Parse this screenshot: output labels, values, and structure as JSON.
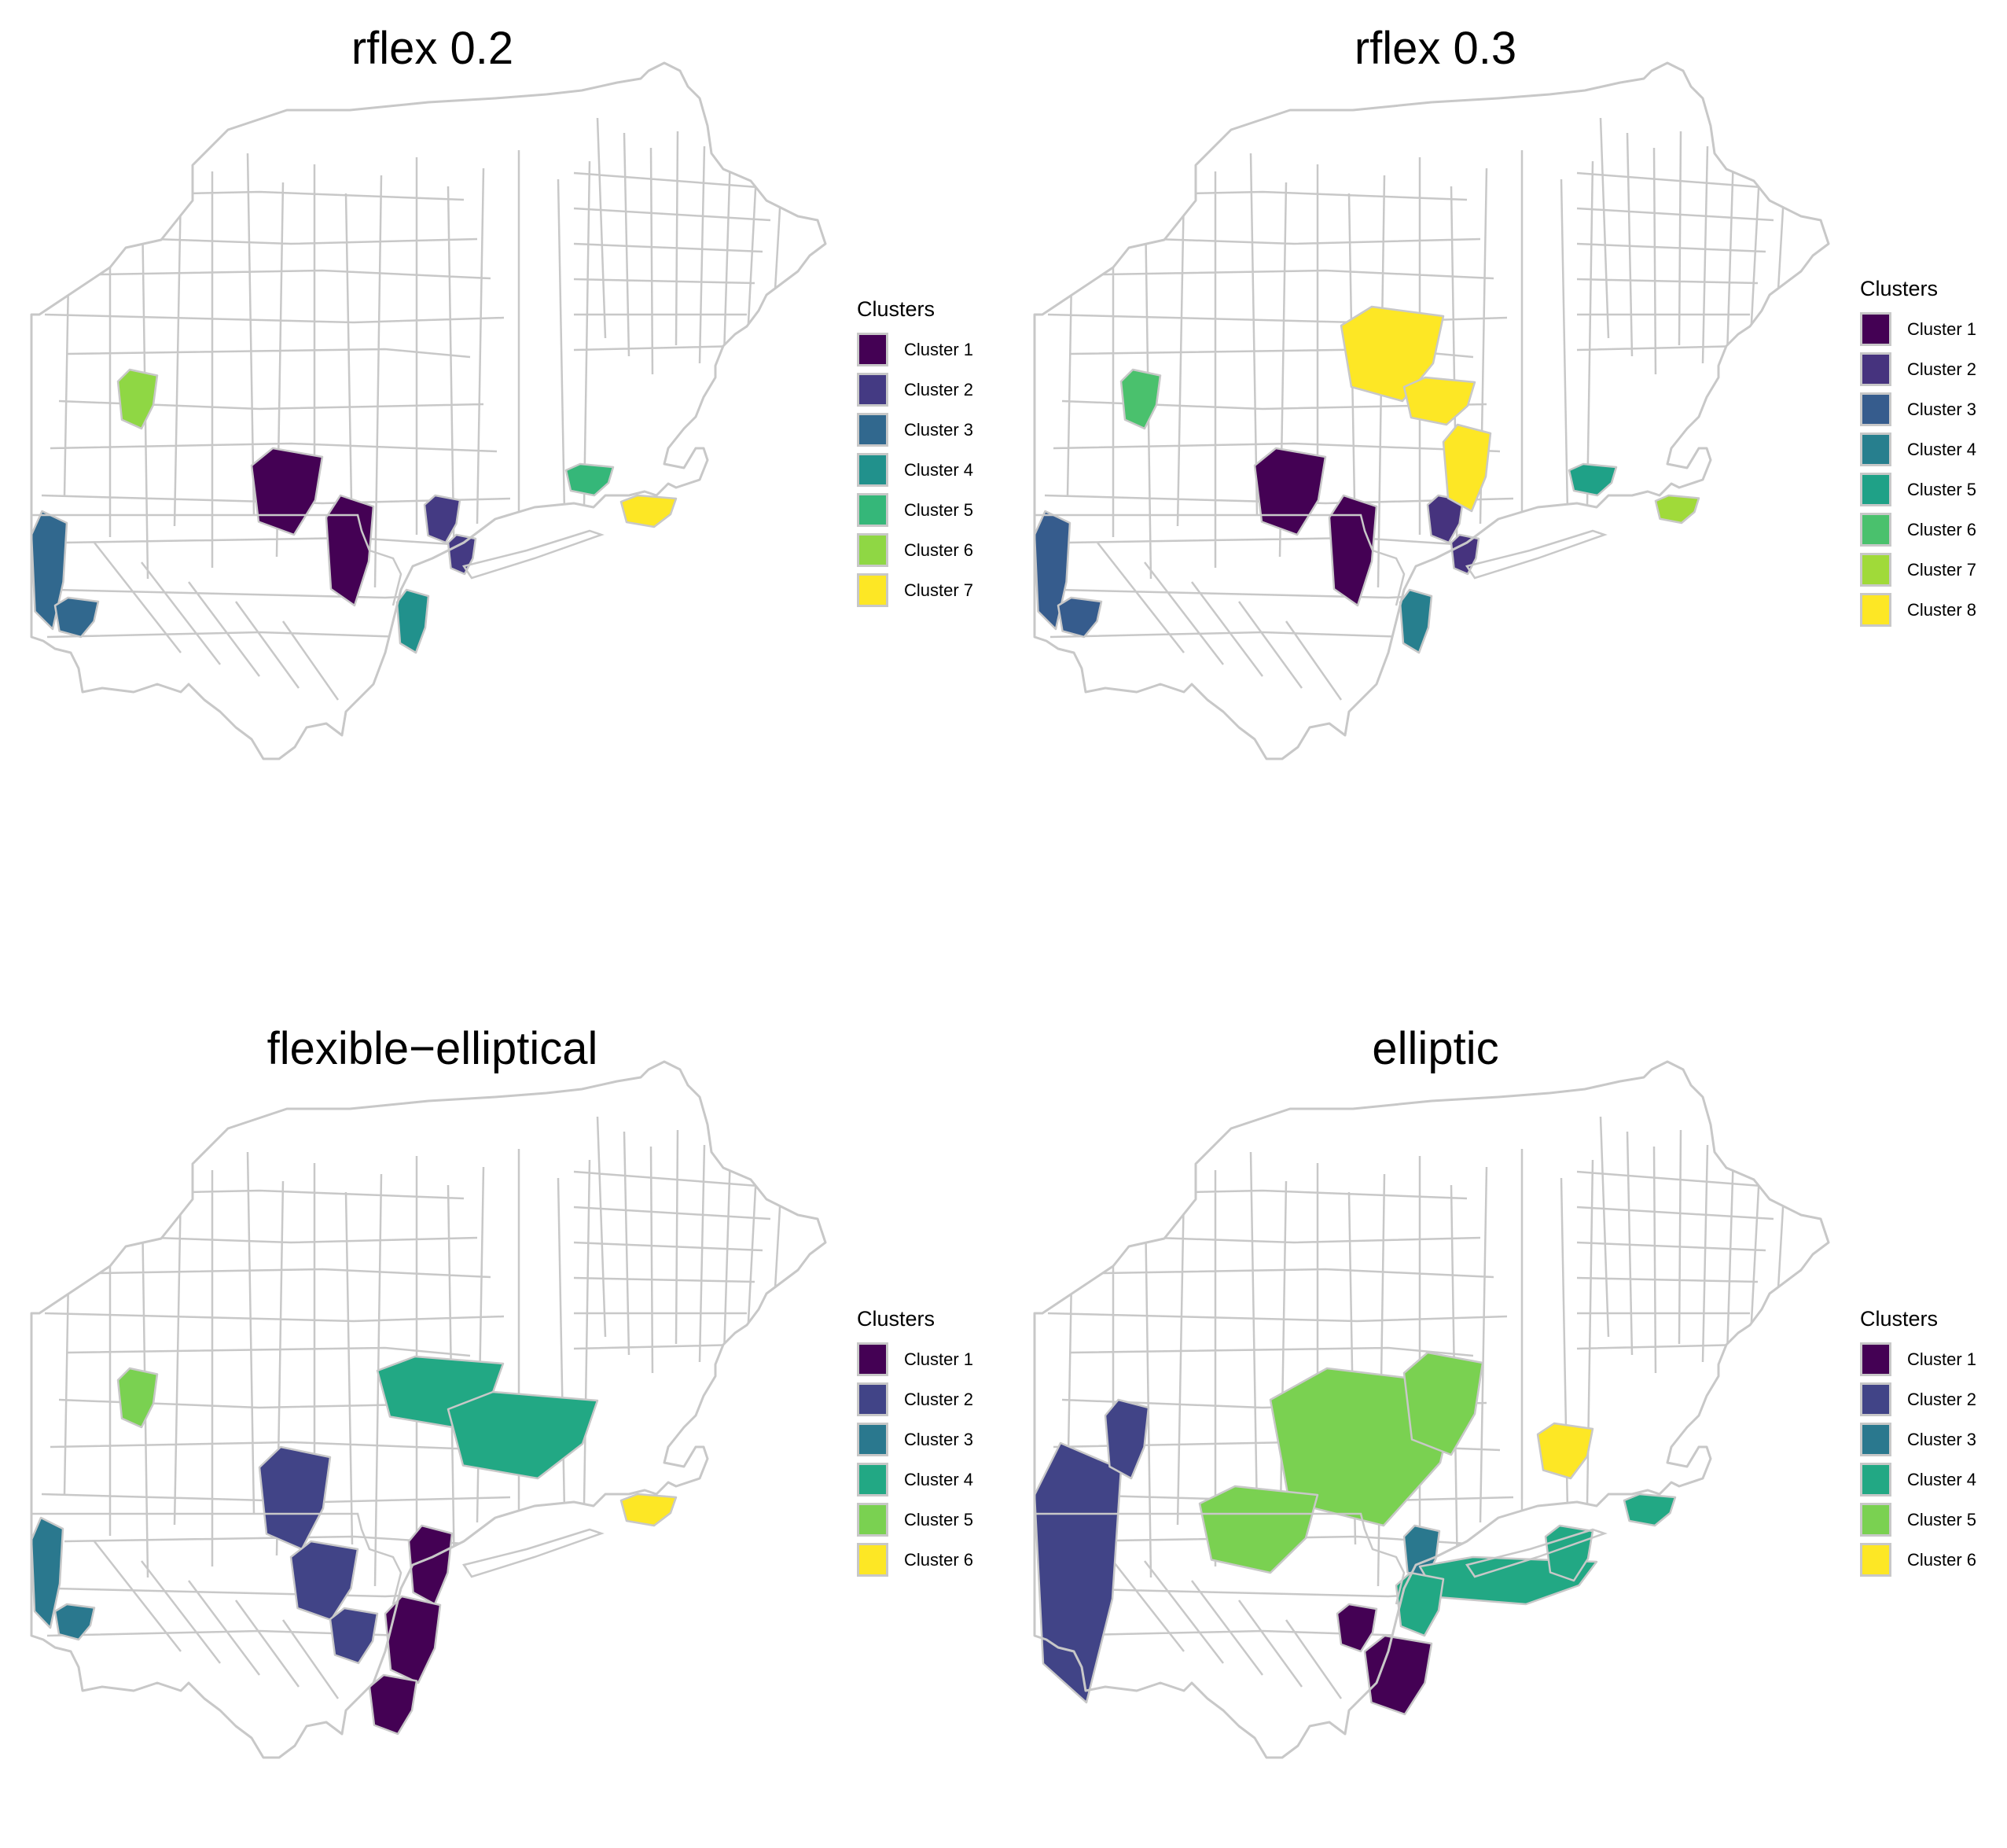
{
  "panels": [
    {
      "title": "rflex 0.2",
      "legend_title": "Clusters",
      "legend": [
        "Cluster 1",
        "Cluster 2",
        "Cluster 3",
        "Cluster 4",
        "Cluster 5",
        "Cluster 6",
        "Cluster 7"
      ],
      "colors": [
        "#440154",
        "#443a83",
        "#31688e",
        "#21918c",
        "#35b779",
        "#8fd744",
        "#fde725"
      ]
    },
    {
      "title": "rflex 0.3",
      "legend_title": "Clusters",
      "legend": [
        "Cluster 1",
        "Cluster 2",
        "Cluster 3",
        "Cluster 4",
        "Cluster 5",
        "Cluster 6",
        "Cluster 7",
        "Cluster 8"
      ],
      "colors": [
        "#440154",
        "#46337e",
        "#365c8d",
        "#277f8e",
        "#1fa187",
        "#4ac16d",
        "#a0da39",
        "#fde725"
      ]
    },
    {
      "title": "flexible−elliptical",
      "legend_title": "Clusters",
      "legend": [
        "Cluster 1",
        "Cluster 2",
        "Cluster 3",
        "Cluster 4",
        "Cluster 5",
        "Cluster 6"
      ],
      "colors": [
        "#440154",
        "#414487",
        "#2a788e",
        "#22a884",
        "#7ad151",
        "#fde725"
      ]
    },
    {
      "title": "elliptic",
      "legend_title": "Clusters",
      "legend": [
        "Cluster 1",
        "Cluster 2",
        "Cluster 3",
        "Cluster 4",
        "Cluster 5",
        "Cluster 6"
      ],
      "colors": [
        "#440154",
        "#414487",
        "#2a788e",
        "#22a884",
        "#7ad151",
        "#fde725"
      ]
    }
  ]
}
